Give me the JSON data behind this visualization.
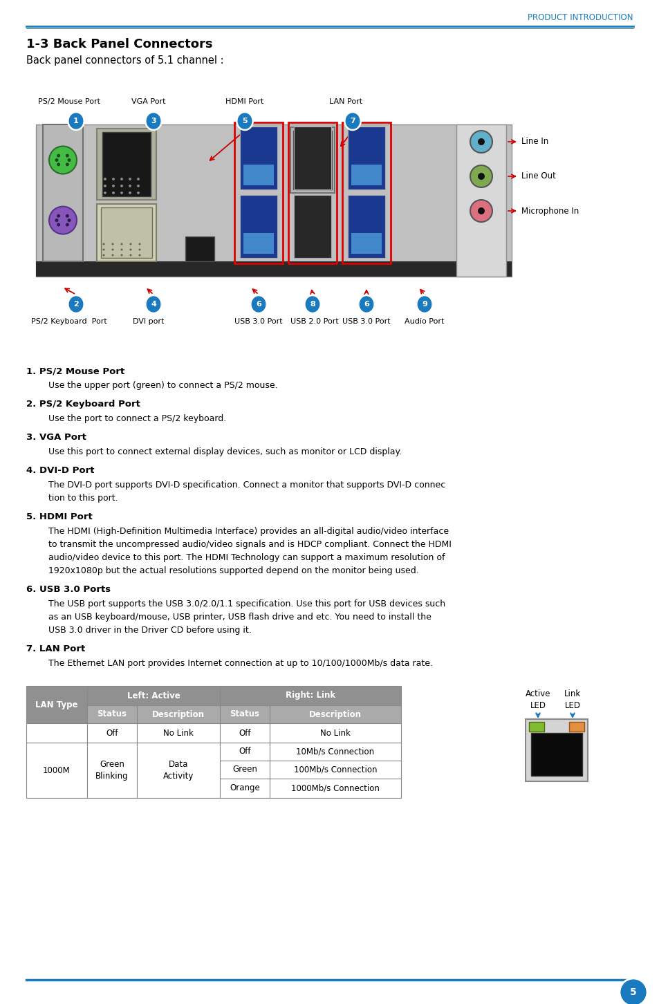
{
  "page_header": "PRODUCT INTRODUCTION",
  "header_color": "#1a7abf",
  "section_title": "1-3 Back Panel Connectors",
  "subtitle": "Back panel connectors of 5.1 channel :",
  "bubble_color": "#1a7abf",
  "line_color": "#cc0000",
  "page_number": "5",
  "bottom_line_color": "#1a7abf",
  "table": {
    "header_bg": "#888888",
    "header_fg": "white",
    "subheader_bg": "#aaaaaa",
    "subheader_fg": "white",
    "border_color": "#888888"
  }
}
